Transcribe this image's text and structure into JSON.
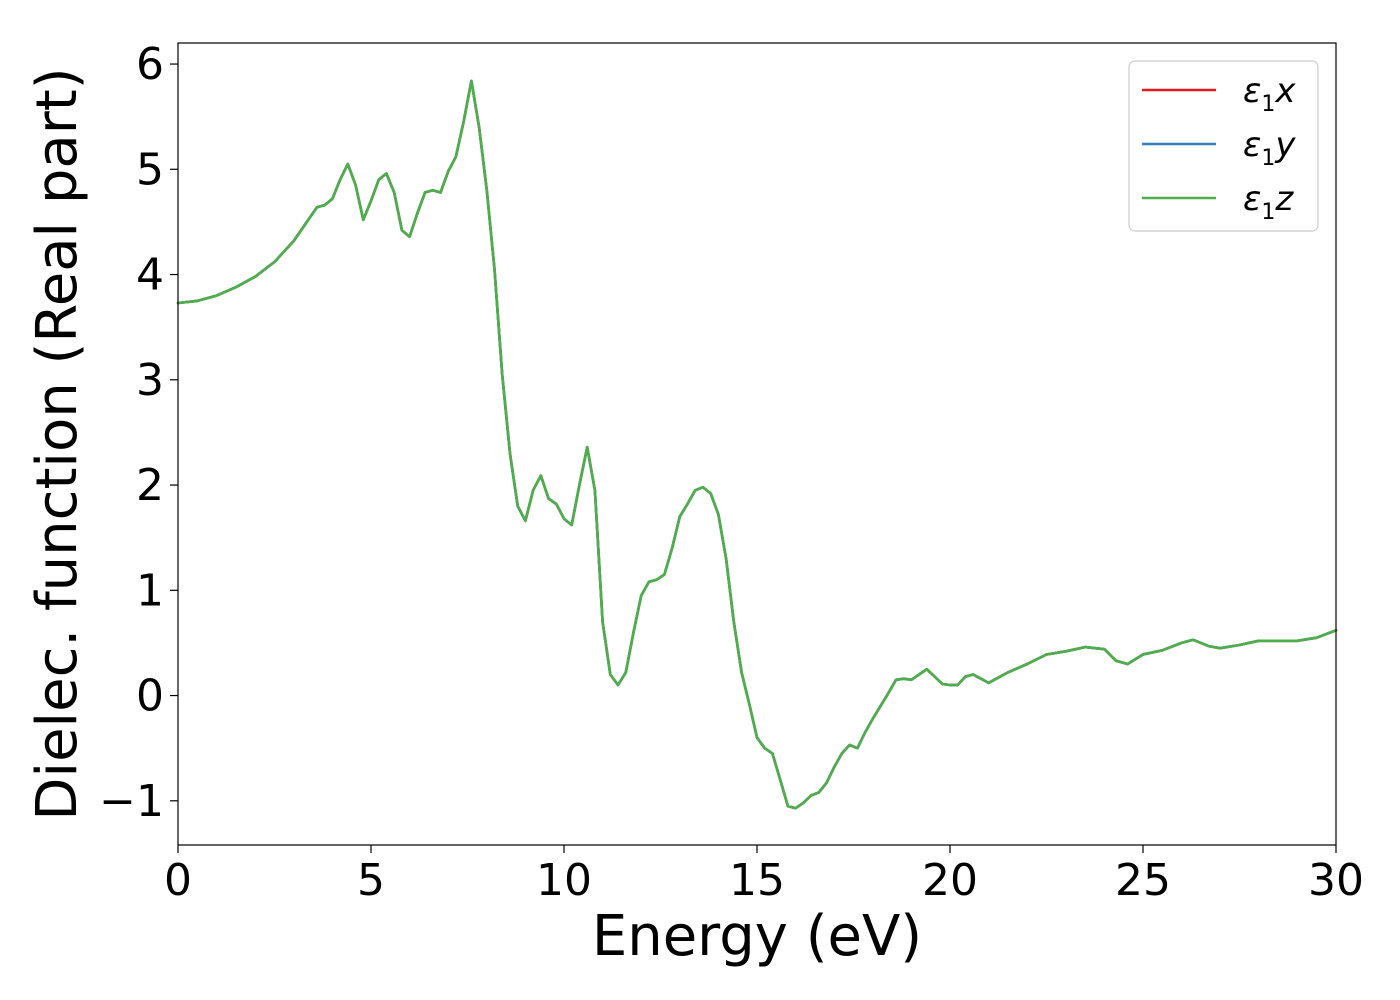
{
  "chart_data": {
    "type": "line",
    "xlabel": "Energy (eV)",
    "ylabel": "Dielec. function (Real part)",
    "xlim": [
      0,
      30
    ],
    "ylim": [
      -1.42,
      6.2
    ],
    "xticks": [
      0,
      5,
      10,
      15,
      20,
      25,
      30
    ],
    "yticks": [
      -1,
      0,
      1,
      2,
      3,
      4,
      5,
      6
    ],
    "ytick_labels": [
      "−1",
      "0",
      "1",
      "2",
      "3",
      "4",
      "5",
      "6"
    ],
    "grid": false,
    "legend_position": "top-right",
    "series": [
      {
        "name": "ε1x",
        "legend_main": "ε",
        "legend_sub": "1",
        "legend_var": "x",
        "color": "#e41a1c",
        "points": "shared"
      },
      {
        "name": "ε1y",
        "legend_main": "ε",
        "legend_sub": "1",
        "legend_var": "y",
        "color": "#377eb8",
        "points": "shared"
      },
      {
        "name": "ε1z",
        "legend_main": "ε",
        "legend_sub": "1",
        "legend_var": "z",
        "color": "#4daf4a",
        "points": "shared"
      }
    ],
    "x": [
      0,
      0.5,
      1,
      1.5,
      2,
      2.5,
      3,
      3.3,
      3.6,
      3.8,
      4.0,
      4.2,
      4.4,
      4.6,
      4.8,
      5.0,
      5.2,
      5.4,
      5.6,
      5.8,
      6.0,
      6.2,
      6.4,
      6.6,
      6.8,
      7.0,
      7.2,
      7.4,
      7.6,
      7.8,
      8.0,
      8.2,
      8.4,
      8.6,
      8.8,
      9.0,
      9.2,
      9.4,
      9.6,
      9.8,
      10.0,
      10.2,
      10.4,
      10.6,
      10.8,
      11.0,
      11.2,
      11.4,
      11.6,
      11.8,
      12.0,
      12.2,
      12.4,
      12.6,
      12.8,
      13.0,
      13.2,
      13.4,
      13.6,
      13.8,
      14.0,
      14.2,
      14.4,
      14.6,
      14.8,
      15.0,
      15.2,
      15.4,
      15.6,
      15.8,
      16.0,
      16.2,
      16.4,
      16.6,
      16.8,
      17.0,
      17.2,
      17.4,
      17.6,
      17.8,
      18.0,
      18.2,
      18.4,
      18.6,
      18.8,
      19.0,
      19.2,
      19.4,
      19.6,
      19.8,
      20.0,
      20.2,
      20.4,
      20.6,
      20.8,
      21.0,
      21.2,
      21.5,
      22.0,
      22.5,
      23.0,
      23.5,
      24.0,
      24.3,
      24.6,
      25.0,
      25.5,
      26.0,
      26.3,
      26.7,
      27.0,
      27.5,
      28.0,
      28.5,
      29.0,
      29.5,
      30.0
    ],
    "y": [
      3.73,
      3.75,
      3.8,
      3.88,
      3.98,
      4.12,
      4.32,
      4.48,
      4.64,
      4.66,
      4.72,
      4.9,
      5.05,
      4.85,
      4.52,
      4.7,
      4.9,
      4.96,
      4.78,
      4.42,
      4.36,
      4.58,
      4.78,
      4.8,
      4.78,
      4.98,
      5.12,
      5.45,
      5.84,
      5.4,
      4.8,
      4.05,
      3.05,
      2.3,
      1.8,
      1.66,
      1.95,
      2.09,
      1.87,
      1.82,
      1.68,
      1.62,
      2.0,
      2.36,
      1.95,
      0.7,
      0.2,
      0.1,
      0.22,
      0.6,
      0.95,
      1.08,
      1.1,
      1.15,
      1.4,
      1.7,
      1.82,
      1.95,
      1.98,
      1.92,
      1.72,
      1.3,
      0.7,
      0.22,
      -0.08,
      -0.4,
      -0.5,
      -0.55,
      -0.8,
      -1.05,
      -1.07,
      -1.02,
      -0.95,
      -0.92,
      -0.83,
      -0.68,
      -0.55,
      -0.47,
      -0.5,
      -0.35,
      -0.22,
      -0.1,
      0.02,
      0.15,
      0.16,
      0.15,
      0.2,
      0.25,
      0.18,
      0.11,
      0.1,
      0.1,
      0.18,
      0.2,
      0.16,
      0.12,
      0.16,
      0.22,
      0.3,
      0.39,
      0.42,
      0.46,
      0.44,
      0.33,
      0.3,
      0.39,
      0.43,
      0.5,
      0.53,
      0.47,
      0.45,
      0.48,
      0.52,
      0.52,
      0.52,
      0.55,
      0.62
    ]
  }
}
